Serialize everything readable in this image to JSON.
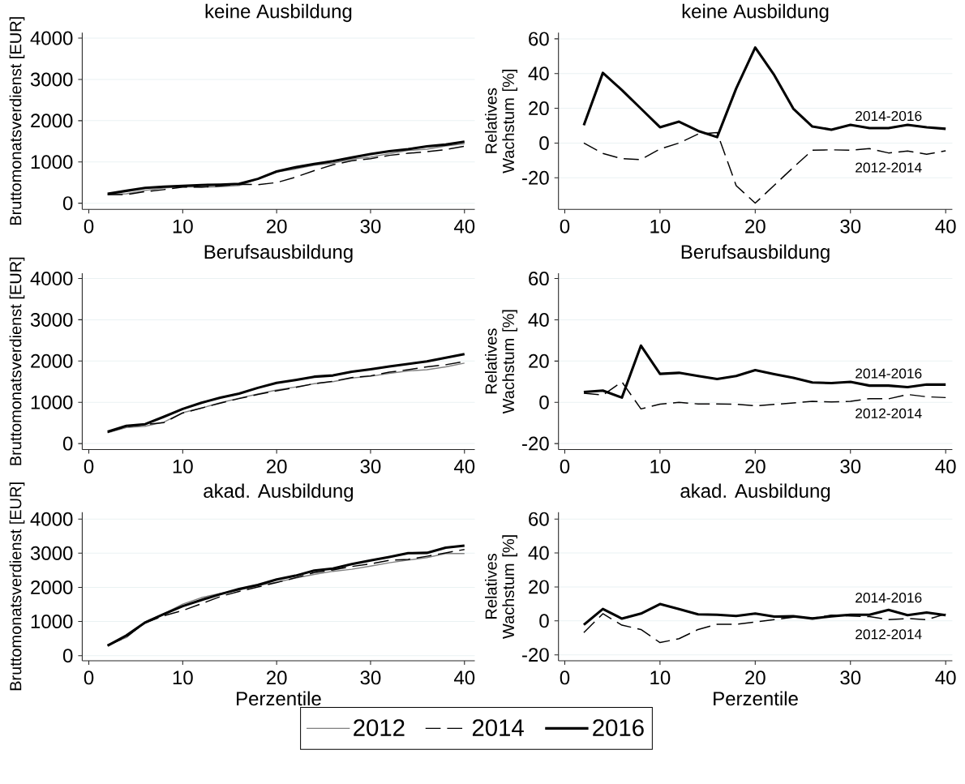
{
  "chart_data": [
    {
      "type": "line",
      "title": "keine Ausbildung",
      "ylabel": "Bruttomonatsverdienst [EUR]",
      "x": [
        2,
        4,
        6,
        8,
        10,
        12,
        14,
        16,
        18,
        20,
        22,
        24,
        26,
        28,
        30,
        32,
        34,
        36,
        38,
        40
      ],
      "series": [
        {
          "color": "#808080",
          "line_style": "solid",
          "values": [
            210,
            230,
            310,
            370,
            400,
            390,
            400,
            430,
            590,
            760,
            830,
            920,
            970,
            1070,
            1120,
            1200,
            1280,
            1310,
            1390,
            1440
          ]
        },
        {
          "color": "#000000",
          "line_style": "dashed",
          "values": [
            210,
            210,
            280,
            330,
            390,
            390,
            420,
            460,
            450,
            500,
            630,
            790,
            930,
            1030,
            1080,
            1160,
            1210,
            1250,
            1300,
            1380
          ]
        },
        {
          "color": "#000000",
          "line_style": "solid",
          "values": [
            230,
            300,
            370,
            400,
            420,
            440,
            450,
            470,
            590,
            770,
            870,
            950,
            1020,
            1110,
            1190,
            1260,
            1310,
            1380,
            1420,
            1490
          ]
        }
      ],
      "xlim": [
        -0.7,
        41.1
      ],
      "ylim": [
        -150,
        4135
      ],
      "xticks": [
        0,
        10,
        20,
        30,
        40
      ],
      "yticks": [
        0,
        1000,
        2000,
        3000,
        4000
      ],
      "grid": "y",
      "marker": "none"
    },
    {
      "type": "line",
      "title": "keine Ausbildung",
      "ylabel": "Relatives Wachstum [%]",
      "x": [
        2,
        4,
        6,
        8,
        10,
        12,
        14,
        16,
        18,
        20,
        22,
        24,
        26,
        28,
        30,
        32,
        34,
        36,
        38,
        40
      ],
      "series": [
        {
          "name": "2012-2014",
          "color": "#000000",
          "line_style": "dashed",
          "values": [
            0,
            -6,
            -9,
            -9.5,
            -3.4,
            0,
            5.2,
            6,
            -24.5,
            -34.6,
            -24.3,
            -14,
            -4.1,
            -3.9,
            -4.1,
            -3.2,
            -5.7,
            -4.6,
            -6.4,
            -4.5
          ]
        },
        {
          "name": "2014-2016",
          "color": "#000000",
          "line_style": "solid",
          "values": [
            10.2,
            40.4,
            30.5,
            19.8,
            9.1,
            12.3,
            7,
            3.4,
            31.4,
            55,
            39.1,
            19.8,
            9.5,
            7.7,
            10.5,
            8.6,
            8.6,
            10.5,
            9.1,
            8.2
          ]
        }
      ],
      "xlim": [
        -0.66,
        40.7
      ],
      "ylim": [
        -38.2,
        63.6
      ],
      "xticks": [
        0,
        10,
        20,
        30,
        40
      ],
      "yticks": [
        -20,
        0,
        20,
        40,
        60
      ],
      "grid": "y",
      "marker": "none"
    },
    {
      "type": "line",
      "title": "Berufsausbildung",
      "ylabel": "Bruttomonatsverdienst [EUR]",
      "x": [
        2,
        4,
        6,
        8,
        10,
        12,
        14,
        16,
        18,
        20,
        22,
        24,
        26,
        28,
        30,
        32,
        34,
        36,
        38,
        40
      ],
      "series": [
        {
          "color": "#808080",
          "line_style": "solid",
          "values": [
            260,
            390,
            420,
            520,
            750,
            860,
            990,
            1100,
            1200,
            1300,
            1370,
            1450,
            1500,
            1590,
            1630,
            1700,
            1760,
            1790,
            1860,
            1950
          ]
        },
        {
          "color": "#000000",
          "line_style": "dashed",
          "values": [
            270,
            410,
            460,
            510,
            740,
            860,
            980,
            1090,
            1190,
            1280,
            1360,
            1450,
            1510,
            1600,
            1640,
            1730,
            1790,
            1860,
            1910,
            1990
          ]
        },
        {
          "color": "#000000",
          "line_style": "solid",
          "values": [
            290,
            430,
            470,
            650,
            840,
            990,
            1110,
            1210,
            1350,
            1470,
            1540,
            1620,
            1650,
            1740,
            1800,
            1870,
            1930,
            1990,
            2080,
            2170
          ]
        }
      ],
      "xlim": [
        -0.7,
        41.1
      ],
      "ylim": [
        -145,
        4128
      ],
      "xticks": [
        0,
        10,
        20,
        30,
        40
      ],
      "yticks": [
        0,
        1000,
        2000,
        3000,
        4000
      ],
      "grid": "y",
      "marker": "none"
    },
    {
      "type": "line",
      "title": "Berufsausbildung",
      "ylabel": "Relatives Wachstum [%]",
      "x": [
        2,
        4,
        6,
        8,
        10,
        12,
        14,
        16,
        18,
        20,
        22,
        24,
        26,
        28,
        30,
        32,
        34,
        36,
        38,
        40
      ],
      "series": [
        {
          "name": "2012-2014",
          "color": "#000000",
          "line_style": "dashed",
          "values": [
            4.4,
            3.5,
            9.9,
            -3.2,
            -0.9,
            0,
            -0.8,
            -0.8,
            -0.9,
            -1.7,
            -1,
            -0.3,
            0.5,
            0.2,
            0.5,
            1.8,
            1.7,
            3.8,
            2.7,
            2.3
          ]
        },
        {
          "name": "2014-2016",
          "color": "#000000",
          "line_style": "solid",
          "values": [
            5,
            5.7,
            2.3,
            27.5,
            13.8,
            14.3,
            12.8,
            11.3,
            12.8,
            15.6,
            13.7,
            11.9,
            9.6,
            9.3,
            9.9,
            8.1,
            8.1,
            7.4,
            8.6,
            8.6
          ]
        }
      ],
      "xlim": [
        -0.66,
        40.7
      ],
      "ylim": [
        -22.9,
        62.6
      ],
      "xticks": [
        0,
        10,
        20,
        30,
        40
      ],
      "yticks": [
        -20,
        0,
        20,
        40,
        60
      ],
      "grid": "y",
      "marker": "none"
    },
    {
      "type": "line",
      "title": "akad. Ausbildung",
      "xlabel": "Perzentile",
      "ylabel": "Bruttomonatsverdienst [EUR]",
      "x": [
        2,
        4,
        6,
        8,
        10,
        12,
        14,
        16,
        18,
        20,
        22,
        24,
        26,
        28,
        30,
        32,
        34,
        36,
        38,
        40
      ],
      "series": [
        {
          "name": "2012",
          "color": "#808080",
          "line_style": "solid",
          "values": [
            320,
            530,
            990,
            1230,
            1510,
            1700,
            1820,
            1920,
            2050,
            2150,
            2270,
            2380,
            2470,
            2530,
            2620,
            2720,
            2800,
            2870,
            2990,
            2990
          ]
        },
        {
          "name": "2014",
          "color": "#000000",
          "line_style": "dashed",
          "values": [
            290,
            550,
            960,
            1170,
            1320,
            1520,
            1730,
            1880,
            2010,
            2140,
            2280,
            2430,
            2510,
            2610,
            2690,
            2790,
            2820,
            2910,
            3010,
            3110
          ]
        },
        {
          "name": "2016",
          "color": "#000000",
          "line_style": "solid",
          "values": [
            290,
            590,
            970,
            1220,
            1450,
            1630,
            1800,
            1950,
            2070,
            2230,
            2340,
            2490,
            2550,
            2680,
            2790,
            2890,
            3000,
            3010,
            3160,
            3220
          ]
        }
      ],
      "xlim": [
        -0.7,
        41.1
      ],
      "ylim": [
        -150,
        4200
      ],
      "xticks": [
        0,
        10,
        20,
        30,
        40
      ],
      "yticks": [
        0,
        1000,
        2000,
        3000,
        4000
      ],
      "grid": "y",
      "marker": "none",
      "legend": "bottom"
    },
    {
      "type": "line",
      "title": "akad. Ausbildung",
      "xlabel": "Perzentile",
      "ylabel": "Relatives Wachstum [%]",
      "x": [
        2,
        4,
        6,
        8,
        10,
        12,
        14,
        16,
        18,
        20,
        22,
        24,
        26,
        28,
        30,
        32,
        34,
        36,
        38,
        40
      ],
      "series": [
        {
          "name": "2012-2014",
          "color": "#000000",
          "line_style": "dashed",
          "values": [
            -6.9,
            4.2,
            -2.5,
            -5.1,
            -12.8,
            -10.5,
            -5.1,
            -2,
            -2,
            -0.7,
            0.7,
            2.2,
            1.6,
            3.4,
            2.9,
            2.5,
            0.7,
            1.4,
            0.7,
            4
          ]
        },
        {
          "name": "2014-2016",
          "color": "#000000",
          "line_style": "solid",
          "values": [
            -2.3,
            7,
            1.3,
            4.3,
            9.9,
            6.9,
            3.8,
            3.6,
            2.9,
            4.3,
            2.5,
            2.7,
            1.4,
            2.7,
            3.6,
            3.6,
            6.5,
            3.4,
            4.9,
            3.4
          ]
        }
      ],
      "xlim": [
        -0.66,
        40.7
      ],
      "ylim": [
        -23.5,
        64
      ],
      "xticks": [
        0,
        10,
        20,
        30,
        40
      ],
      "yticks": [
        -20,
        0,
        20,
        40,
        60
      ],
      "grid": "y",
      "marker": "none"
    }
  ]
}
